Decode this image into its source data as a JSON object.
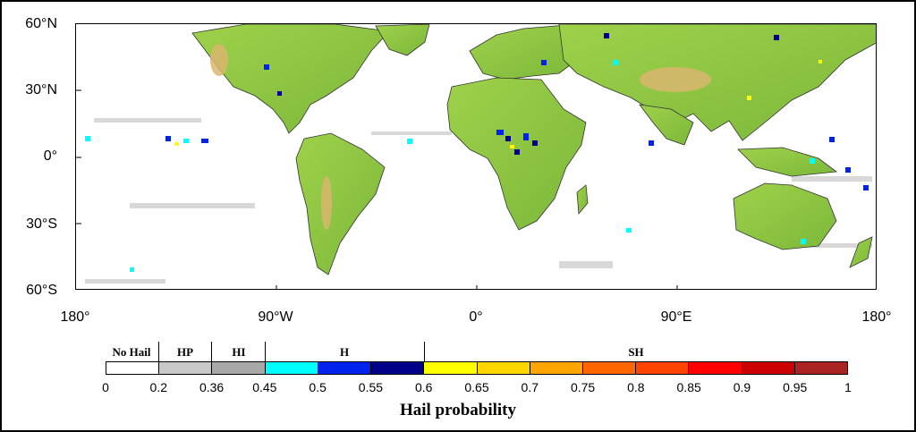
{
  "map": {
    "lat_labels": [
      "60°N",
      "30°N",
      "0°",
      "30°S",
      "60°S"
    ],
    "lon_labels": [
      "180°",
      "90°W",
      "0°",
      "90°E",
      "180°"
    ],
    "land_color": "#8cc63f",
    "highland_color": "#d4b26a",
    "ocean_color": "#ffffff"
  },
  "legend": {
    "categories": [
      {
        "label": "No Hail",
        "from": 0,
        "to": 0.2
      },
      {
        "label": "HP",
        "from": 0.2,
        "to": 0.36
      },
      {
        "label": "HI",
        "from": 0.36,
        "to": 0.45
      },
      {
        "label": "H",
        "from": 0.45,
        "to": 0.6
      },
      {
        "label": "SH",
        "from": 0.6,
        "to": 1
      }
    ],
    "bins": [
      {
        "from": 0,
        "to": 0.2,
        "color": "#ffffff"
      },
      {
        "from": 0.2,
        "to": 0.36,
        "color": "#c8c8c8"
      },
      {
        "from": 0.36,
        "to": 0.45,
        "color": "#a8a8a8"
      },
      {
        "from": 0.45,
        "to": 0.5,
        "color": "#00ffff"
      },
      {
        "from": 0.5,
        "to": 0.55,
        "color": "#0022ee"
      },
      {
        "from": 0.55,
        "to": 0.6,
        "color": "#000088"
      },
      {
        "from": 0.6,
        "to": 0.65,
        "color": "#ffff00"
      },
      {
        "from": 0.65,
        "to": 0.7,
        "color": "#ffd700"
      },
      {
        "from": 0.7,
        "to": 0.75,
        "color": "#ffa500"
      },
      {
        "from": 0.75,
        "to": 0.8,
        "color": "#ff6600"
      },
      {
        "from": 0.8,
        "to": 0.85,
        "color": "#ff4400"
      },
      {
        "from": 0.85,
        "to": 0.9,
        "color": "#ff0000"
      },
      {
        "from": 0.9,
        "to": 0.95,
        "color": "#cc0000"
      },
      {
        "from": 0.95,
        "to": 1,
        "color": "#aa2222"
      }
    ],
    "ticks": [
      "0",
      "0.2",
      "0.36",
      "0.45",
      "0.5",
      "0.55",
      "0.6",
      "0.65",
      "0.7",
      "0.75",
      "0.8",
      "0.85",
      "0.9",
      "0.95",
      "1"
    ],
    "title": "Hail probability"
  }
}
